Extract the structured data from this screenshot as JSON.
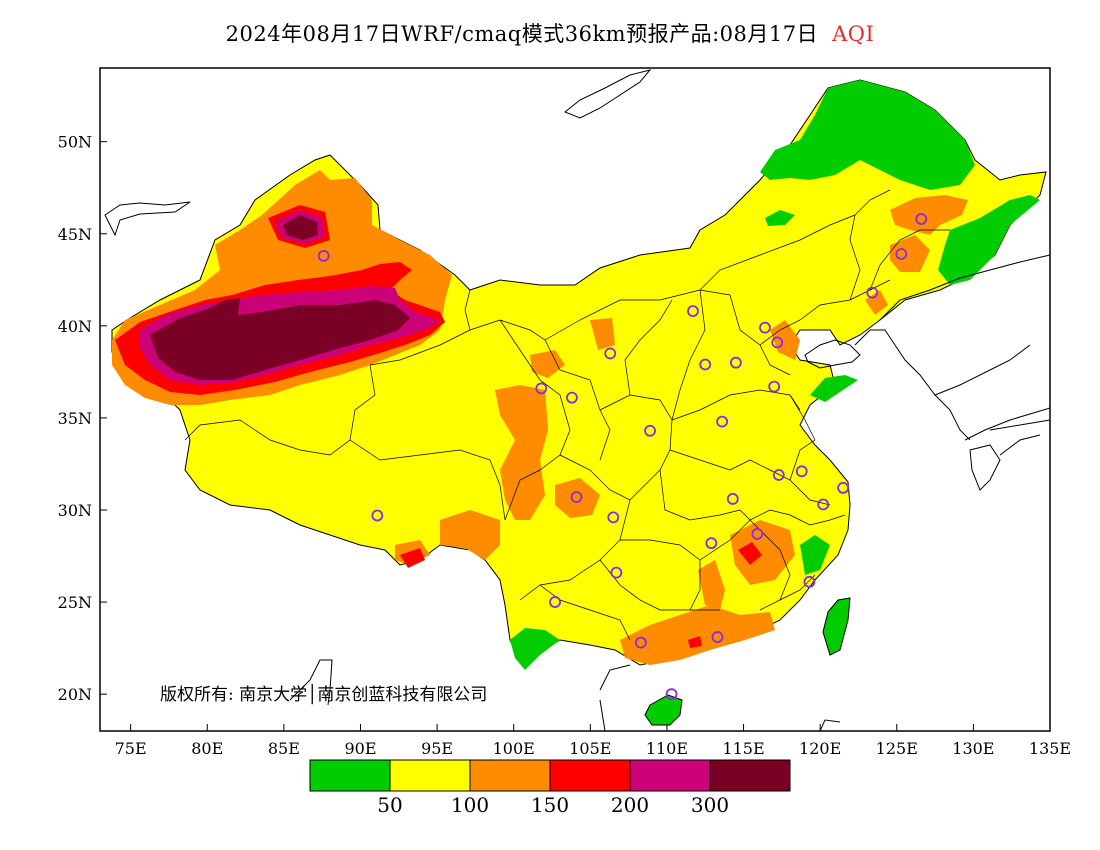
{
  "title": {
    "text": "2024年08月17日WRF/cmaq模式36km预报产品:08月17日",
    "variable": "AQI"
  },
  "axes": {
    "lat_labels": [
      "50N",
      "45N",
      "40N",
      "35N",
      "30N",
      "25N",
      "20N"
    ],
    "lon_labels": [
      "75E",
      "80E",
      "85E",
      "90E",
      "95E",
      "100E",
      "105E",
      "110E",
      "115E",
      "120E",
      "125E",
      "130E",
      "135E"
    ],
    "lat_values": [
      50,
      45,
      40,
      35,
      30,
      25,
      20
    ],
    "lon_values": [
      75,
      80,
      85,
      90,
      95,
      100,
      105,
      110,
      115,
      120,
      125,
      130,
      135
    ],
    "lat_range": [
      18,
      54
    ],
    "lon_range": [
      73,
      135
    ]
  },
  "legend": {
    "colors": [
      "#00cc00",
      "#ffff00",
      "#ff8c00",
      "#ff0000",
      "#cc0077",
      "#7a0025"
    ],
    "breaks": [
      "50",
      "100",
      "150",
      "200",
      "300"
    ]
  },
  "copyright": "版权所有: 南京大学│南京创蓝科技有限公司",
  "cities": [
    [
      87.6,
      43.8
    ],
    [
      101.8,
      36.6
    ],
    [
      103.8,
      36.1
    ],
    [
      106.3,
      38.5
    ],
    [
      108.9,
      34.3
    ],
    [
      111.7,
      40.8
    ],
    [
      112.5,
      37.9
    ],
    [
      114.5,
      38.0
    ],
    [
      116.4,
      39.9
    ],
    [
      117.2,
      39.1
    ],
    [
      117.0,
      36.7
    ],
    [
      113.6,
      34.8
    ],
    [
      117.3,
      31.9
    ],
    [
      118.8,
      32.1
    ],
    [
      120.2,
      30.3
    ],
    [
      121.5,
      31.2
    ],
    [
      114.3,
      30.6
    ],
    [
      115.9,
      28.7
    ],
    [
      112.9,
      28.2
    ],
    [
      119.3,
      26.1
    ],
    [
      113.3,
      23.1
    ],
    [
      108.3,
      22.8
    ],
    [
      110.3,
      20.0
    ],
    [
      106.7,
      26.6
    ],
    [
      102.7,
      25.0
    ],
    [
      104.1,
      30.7
    ],
    [
      106.5,
      29.6
    ],
    [
      91.1,
      29.7
    ],
    [
      123.4,
      41.8
    ],
    [
      125.3,
      43.9
    ],
    [
      126.6,
      45.8
    ]
  ]
}
